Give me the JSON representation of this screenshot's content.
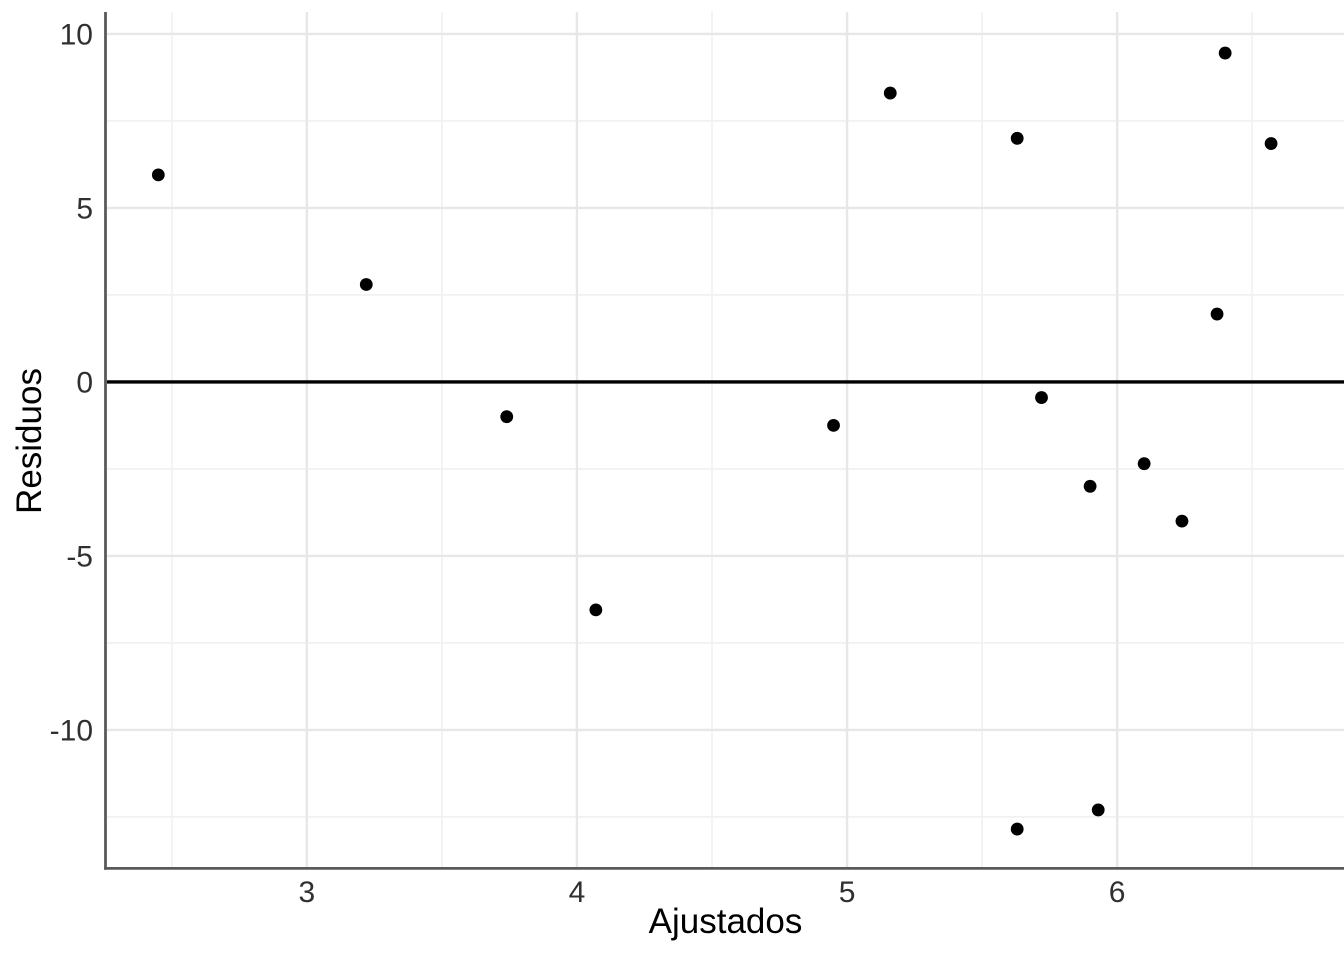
{
  "chart_data": {
    "type": "scatter",
    "title": "",
    "xlabel": "Ajustados",
    "ylabel": "Residuos",
    "x_ticks": [
      3,
      4,
      5,
      6
    ],
    "y_ticks": [
      10,
      5,
      0,
      -5,
      -10
    ],
    "x_minor": [
      2.5,
      3.5,
      4.5,
      5.5,
      6.5
    ],
    "y_minor": [
      7.5,
      2.5,
      -2.5,
      -7.5,
      -12.5
    ],
    "xlim": [
      2.26,
      6.84
    ],
    "ylim": [
      -13.94,
      10.63
    ],
    "grid": "major+minor",
    "legend": "none",
    "hline": 0,
    "points": [
      {
        "x": 2.45,
        "y": 5.95
      },
      {
        "x": 3.22,
        "y": 2.8
      },
      {
        "x": 3.74,
        "y": -1.0
      },
      {
        "x": 4.07,
        "y": -6.55
      },
      {
        "x": 4.95,
        "y": -1.25
      },
      {
        "x": 5.16,
        "y": 8.3
      },
      {
        "x": 5.63,
        "y": 7.0
      },
      {
        "x": 5.72,
        "y": -0.45
      },
      {
        "x": 5.9,
        "y": -3.0
      },
      {
        "x": 6.1,
        "y": -2.35
      },
      {
        "x": 6.24,
        "y": -4.0
      },
      {
        "x": 6.37,
        "y": 1.95
      },
      {
        "x": 6.4,
        "y": 9.45
      },
      {
        "x": 6.57,
        "y": 6.85
      },
      {
        "x": 5.63,
        "y": -12.85
      },
      {
        "x": 5.93,
        "y": -12.3
      }
    ],
    "point_color": "#000000",
    "hline_color": "#000000",
    "axis_line_color": "#5a5a5a",
    "grid_major_color": "#e7e7e7",
    "grid_minor_color": "#f1f1f1",
    "tick_label_color": "#303030",
    "axis_title_color": "#000000",
    "background": "#ffffff"
  }
}
